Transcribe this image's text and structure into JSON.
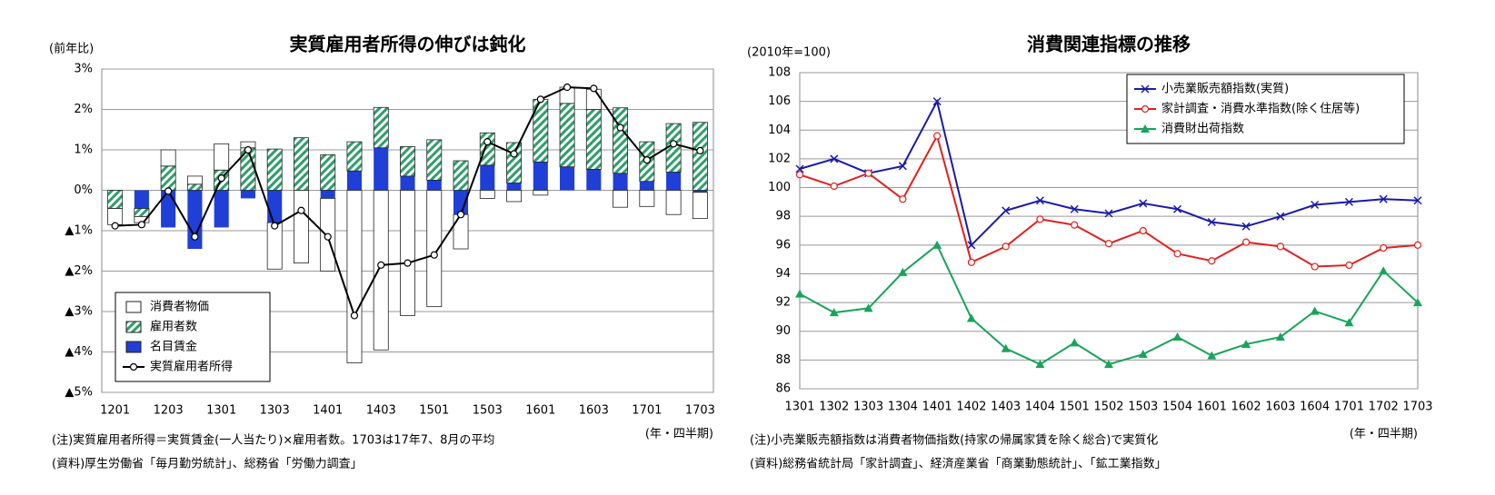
{
  "chart_data": [
    {
      "type": "bar",
      "title": "実質雇用者所得の伸びは鈍化",
      "y_label": "(前年比)",
      "x_label": "(年・四半期)",
      "notes": [
        "(注)実質雇用者所得＝実質賃金(一人当たり)×雇用者数。1703は17年7、8月の平均",
        "(資料)厚生労働省「毎月勤労統計」、総務省「労働力調査」"
      ],
      "categories": [
        "1201",
        null,
        "1203",
        null,
        "1301",
        null,
        "1303",
        null,
        "1401",
        null,
        "1403",
        null,
        "1501",
        null,
        "1503",
        null,
        "1601",
        null,
        "1603",
        null,
        "1701",
        null,
        "1703"
      ],
      "series": [
        {
          "name": "名目賃金",
          "type": "bar",
          "color": "#1f3fd6",
          "values": [
            0,
            -0.45,
            -0.92,
            -1.45,
            -0.92,
            -0.2,
            -0.8,
            0,
            -0.2,
            0.48,
            1.05,
            0.35,
            0.25,
            -0.6,
            0.62,
            0.18,
            0.7,
            0.58,
            0.52,
            0.42,
            0.22,
            0.45,
            -0.05
          ]
        },
        {
          "name": "雇用者数",
          "type": "bar",
          "color": "#2e9e6a",
          "hatch": true,
          "values": [
            -0.45,
            -0.2,
            0.6,
            0.15,
            0.5,
            1.05,
            1.02,
            1.3,
            0.88,
            0.72,
            1.0,
            0.73,
            1.0,
            0.73,
            0.8,
            1.0,
            1.55,
            1.57,
            1.48,
            1.62,
            0.98,
            1.2,
            1.68
          ]
        },
        {
          "name": "消費者物価",
          "type": "bar",
          "color": "#ffffff",
          "values": [
            -0.4,
            -0.15,
            0.4,
            0.2,
            0.65,
            0.15,
            -1.15,
            -1.8,
            -1.8,
            -4.27,
            -3.95,
            -3.1,
            -2.88,
            -0.85,
            -0.2,
            -0.28,
            -0.12,
            0.4,
            0.5,
            -0.42,
            -0.4,
            -0.6,
            -0.65
          ]
        },
        {
          "name": "実質雇用者所得",
          "type": "line",
          "color": "#000000",
          "values": [
            -0.88,
            -0.85,
            -0.02,
            -1.15,
            0.3,
            1.0,
            -0.88,
            -0.5,
            -1.15,
            -3.1,
            -1.85,
            -1.8,
            -1.6,
            -0.6,
            1.2,
            0.9,
            2.25,
            2.55,
            2.52,
            1.55,
            0.75,
            1.15,
            0.98
          ]
        }
      ],
      "ylim": [
        -5,
        3
      ],
      "yticks": [
        {
          "value": 3,
          "label": "3%"
        },
        {
          "value": 2,
          "label": "2%"
        },
        {
          "value": 1,
          "label": "1%"
        },
        {
          "value": 0,
          "label": "0%"
        },
        {
          "value": -1,
          "label": "▲1%"
        },
        {
          "value": -2,
          "label": "▲2%"
        },
        {
          "value": -3,
          "label": "▲3%"
        },
        {
          "value": -4,
          "label": "▲4%"
        },
        {
          "value": -5,
          "label": "▲5%"
        }
      ],
      "grid": true,
      "legend": "lower left"
    },
    {
      "type": "line",
      "title": "消費関連指標の推移",
      "y_label": "(2010年=100)",
      "x_label": "(年・四半期)",
      "notes": [
        "(注)小売業販売額指数は消費者物価指数(持家の帰属家賃を除く総合)で実質化",
        "(資料)総務省統計局「家計調査」、経済産業省「商業動態統計」、「鉱工業指数」"
      ],
      "categories": [
        "1301",
        "1302",
        "1303",
        "1304",
        "1401",
        "1402",
        "1403",
        "1404",
        "1501",
        "1502",
        "1503",
        "1504",
        "1601",
        "1602",
        "1603",
        "1604",
        "1701",
        "1702",
        "1703"
      ],
      "series": [
        {
          "name": "小売業販売額指数(実質)",
          "color": "#1a1aa6",
          "marker": "x",
          "values": [
            101.3,
            102.0,
            101.0,
            101.5,
            106.0,
            96.0,
            98.4,
            99.1,
            98.5,
            98.2,
            98.9,
            98.5,
            97.6,
            97.3,
            98.0,
            98.8,
            99.0,
            99.2,
            99.1
          ]
        },
        {
          "name": "家計調査・消費水準指数(除く住居等)",
          "color": "#e0211f",
          "marker": "circle",
          "values": [
            100.9,
            100.1,
            101.0,
            99.2,
            103.6,
            94.8,
            95.9,
            97.8,
            97.4,
            96.1,
            97.0,
            95.4,
            94.9,
            96.2,
            95.9,
            94.5,
            94.6,
            95.8,
            96.0
          ]
        },
        {
          "name": "消費財出荷指数",
          "color": "#1aa35a",
          "marker": "triangle",
          "values": [
            92.6,
            91.3,
            91.6,
            94.1,
            96.0,
            90.9,
            88.8,
            87.7,
            89.2,
            87.7,
            88.4,
            89.6,
            88.3,
            89.1,
            89.6,
            91.4,
            90.6,
            94.2,
            92.0
          ]
        }
      ],
      "ylim": [
        86,
        108
      ],
      "yticks": [
        108,
        106,
        104,
        102,
        100,
        98,
        96,
        94,
        92,
        90,
        88,
        86
      ],
      "grid": true,
      "legend": "upper right"
    }
  ]
}
